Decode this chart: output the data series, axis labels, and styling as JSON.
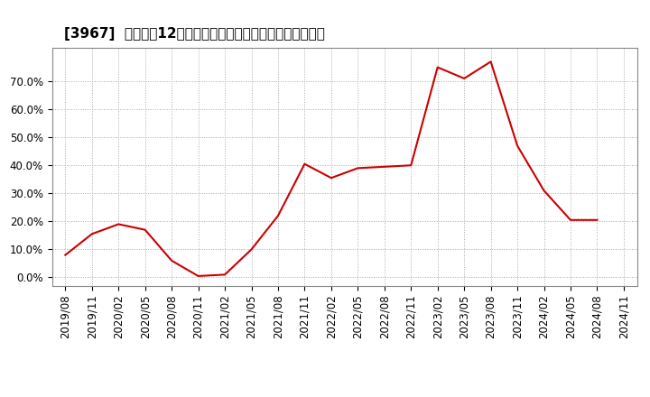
{
  "title": "[3967]  売上高の12か月移動合計の対前年同期増減率の推移",
  "line_color": "#cc0000",
  "background_color": "#ffffff",
  "plot_bg_color": "#ffffff",
  "grid_color": "#aaaaaa",
  "dates": [
    "2019/08",
    "2019/11",
    "2020/02",
    "2020/05",
    "2020/08",
    "2020/11",
    "2021/02",
    "2021/05",
    "2021/08",
    "2021/11",
    "2022/02",
    "2022/05",
    "2022/08",
    "2022/11",
    "2023/02",
    "2023/05",
    "2023/08",
    "2023/11",
    "2024/02",
    "2024/05",
    "2024/08",
    "2024/11"
  ],
  "values": [
    0.08,
    0.155,
    0.19,
    0.17,
    0.06,
    0.005,
    0.01,
    0.1,
    0.22,
    0.405,
    0.355,
    0.39,
    0.395,
    0.4,
    0.75,
    0.71,
    0.77,
    0.47,
    0.31,
    0.205,
    0.205,
    null
  ],
  "ylim": [
    -0.03,
    0.82
  ],
  "yticks": [
    0.0,
    0.1,
    0.2,
    0.3,
    0.4,
    0.5,
    0.6,
    0.7
  ],
  "title_fontsize": 11,
  "tick_fontsize": 8.5
}
